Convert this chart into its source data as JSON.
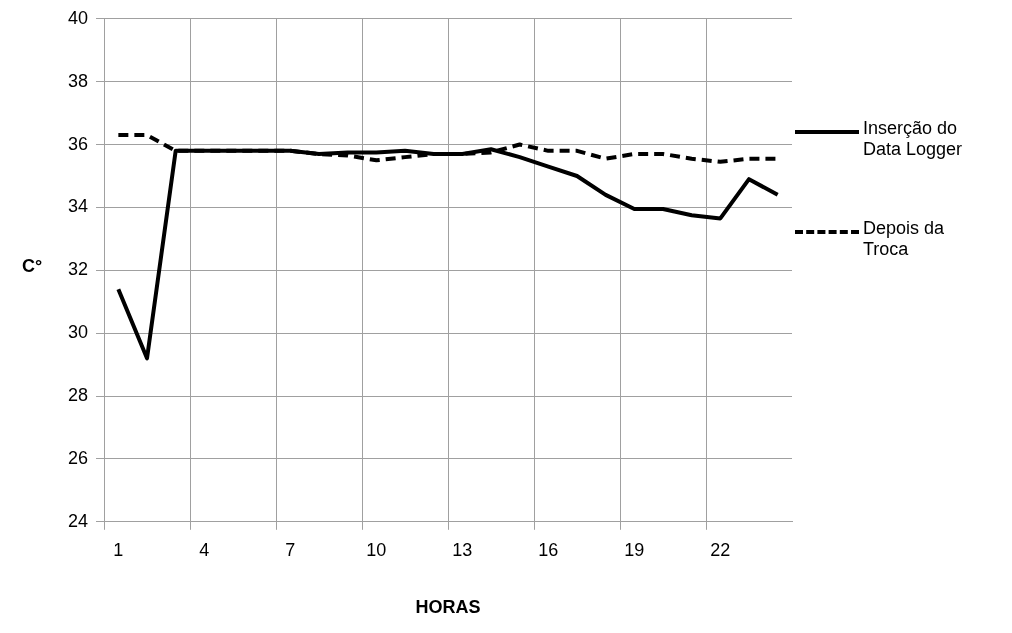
{
  "chart_data": {
    "type": "line",
    "xlabel": "HORAS",
    "ylabel": "C°",
    "categories": [
      "1",
      null,
      null,
      "4",
      null,
      null,
      "7",
      null,
      null,
      "10",
      null,
      null,
      "13",
      null,
      null,
      "16",
      null,
      null,
      "19",
      null,
      null,
      "22",
      null,
      null
    ],
    "series": [
      {
        "name": "Inserção do Data Logger",
        "color": "#000000",
        "line_style": "solid",
        "values": [
          31.4,
          29.2,
          35.8,
          35.8,
          35.8,
          35.8,
          35.8,
          35.7,
          35.75,
          35.75,
          35.8,
          35.7,
          35.7,
          35.85,
          35.6,
          35.3,
          35.0,
          34.4,
          33.95,
          33.95,
          33.75,
          33.65,
          34.9,
          34.4
        ]
      },
      {
        "name": "Depois da Troca",
        "color": "#000000",
        "line_style": "dashed",
        "values": [
          36.3,
          36.3,
          35.8,
          35.8,
          35.8,
          35.8,
          35.8,
          35.7,
          35.65,
          35.5,
          35.6,
          35.7,
          35.7,
          35.75,
          36.0,
          35.8,
          35.8,
          35.55,
          35.7,
          35.7,
          35.55,
          35.45,
          35.55,
          35.55
        ]
      }
    ],
    "ylim": [
      24,
      40
    ],
    "yticks": [
      24,
      26,
      28,
      30,
      32,
      34,
      36,
      38,
      40
    ],
    "grid": true,
    "legend": "right",
    "marker": "none"
  }
}
